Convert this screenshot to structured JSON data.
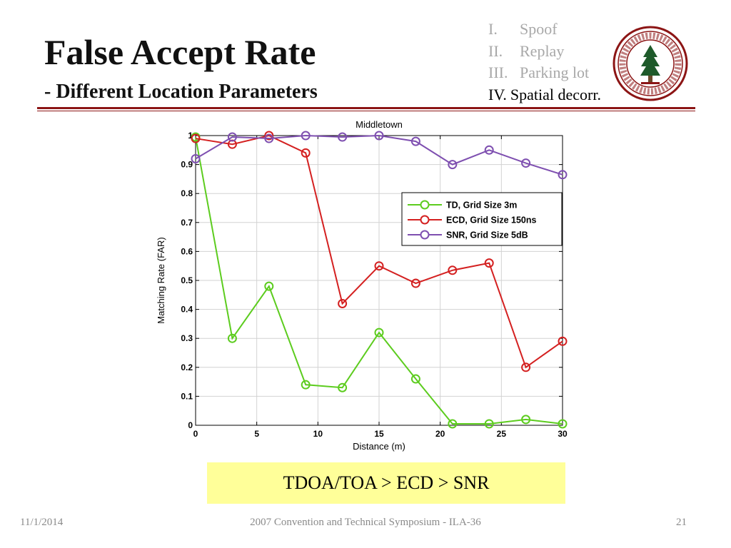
{
  "slide": {
    "title": "False Accept Rate",
    "subtitle": "- Different Location Parameters",
    "outline": [
      {
        "num": "I.",
        "label": "Spoof"
      },
      {
        "num": "II.",
        "label": "Replay"
      },
      {
        "num": "III.",
        "label": "Parking lot"
      },
      {
        "num": "IV.",
        "label": "Spatial decorr."
      }
    ],
    "callout": "TDOA/TOA > ECD > SNR",
    "footer": {
      "date": "11/1/2014",
      "center": "2007 Convention and Technical Symposium - ILA-36",
      "page": "21"
    },
    "colors": {
      "accent": "#8c1515",
      "dim_text": "#a8a8a8",
      "callout_bg": "#ffff99"
    }
  },
  "chart_data": {
    "type": "line",
    "title": "Middletown",
    "xlabel": "Distance (m)",
    "ylabel": "Matching Rate (FAR)",
    "xlim": [
      0,
      30
    ],
    "ylim": [
      0,
      1
    ],
    "xticks": [
      0,
      5,
      10,
      15,
      20,
      25,
      30
    ],
    "yticks": [
      0,
      0.1,
      0.2,
      0.3,
      0.4,
      0.5,
      0.6,
      0.7,
      0.8,
      0.9,
      1
    ],
    "x": [
      0,
      3,
      6,
      9,
      12,
      15,
      18,
      21,
      24,
      27,
      30
    ],
    "grid": true,
    "legend": "top-right",
    "marker": "circle",
    "series": [
      {
        "name": "TD, Grid Size 3m",
        "color": "#5ccc1e",
        "values": [
          0.995,
          0.3,
          0.48,
          0.14,
          0.13,
          0.32,
          0.16,
          0.005,
          0.005,
          0.02,
          0.005
        ]
      },
      {
        "name": "ECD, Grid Size 150ns",
        "color": "#d42020",
        "values": [
          0.99,
          0.97,
          1.0,
          0.94,
          0.42,
          0.55,
          0.49,
          0.535,
          0.56,
          0.2,
          0.29
        ]
      },
      {
        "name": "SNR, Grid Size 5dB",
        "color": "#7e4fb0",
        "values": [
          0.92,
          0.995,
          0.99,
          1.0,
          0.995,
          1.0,
          0.98,
          0.9,
          0.95,
          0.905,
          0.865
        ]
      }
    ]
  }
}
